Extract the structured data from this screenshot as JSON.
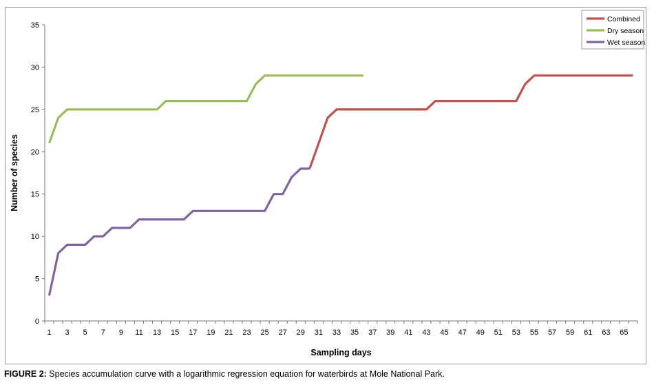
{
  "caption": {
    "label": "FIGURE 2:",
    "text": " Species accumulation curve with a logarithmic regression equation for waterbirds at Mole National Park."
  },
  "chart_data": {
    "type": "line",
    "xlabel": "Sampling days",
    "ylabel": "Number of species",
    "xlim": [
      1,
      66
    ],
    "ylim": [
      0,
      35
    ],
    "yticks": [
      0,
      5,
      10,
      15,
      20,
      25,
      30,
      35
    ],
    "xtick_labels": [
      1,
      3,
      5,
      7,
      9,
      11,
      13,
      15,
      17,
      19,
      21,
      23,
      25,
      27,
      29,
      31,
      33,
      35,
      37,
      39,
      41,
      43,
      45,
      47,
      49,
      51,
      53,
      55,
      57,
      59,
      61,
      63,
      65
    ],
    "grid": false,
    "legend_position": "top-right",
    "series": [
      {
        "name": "Combined",
        "color": "#c0504d",
        "x": [
          30,
          31,
          32,
          33,
          34,
          35,
          36,
          37,
          38,
          39,
          40,
          41,
          42,
          43,
          44,
          45,
          46,
          47,
          48,
          49,
          50,
          51,
          52,
          53,
          54,
          55,
          56,
          57,
          58,
          59,
          60,
          61,
          62,
          63,
          64,
          65,
          66
        ],
        "y": [
          18,
          21,
          24,
          25,
          25,
          25,
          25,
          25,
          25,
          25,
          25,
          25,
          25,
          25,
          26,
          26,
          26,
          26,
          26,
          26,
          26,
          26,
          26,
          26,
          28,
          29,
          29,
          29,
          29,
          29,
          29,
          29,
          29,
          29,
          29,
          29,
          29
        ]
      },
      {
        "name": "Dry season",
        "color": "#9bbb59",
        "x": [
          1,
          2,
          3,
          4,
          5,
          6,
          7,
          8,
          9,
          10,
          11,
          12,
          13,
          14,
          15,
          16,
          17,
          18,
          19,
          20,
          21,
          22,
          23,
          24,
          25,
          26,
          27,
          28,
          29,
          30,
          31,
          32,
          33,
          34,
          35,
          36
        ],
        "y": [
          21,
          24,
          25,
          25,
          25,
          25,
          25,
          25,
          25,
          25,
          25,
          25,
          25,
          26,
          26,
          26,
          26,
          26,
          26,
          26,
          26,
          26,
          26,
          28,
          29,
          29,
          29,
          29,
          29,
          29,
          29,
          29,
          29,
          29,
          29,
          29
        ]
      },
      {
        "name": "Wet season",
        "color": "#8064a2",
        "x": [
          1,
          2,
          3,
          4,
          5,
          6,
          7,
          8,
          9,
          10,
          11,
          12,
          13,
          14,
          15,
          16,
          17,
          18,
          19,
          20,
          21,
          22,
          23,
          24,
          25,
          26,
          27,
          28,
          29,
          30
        ],
        "y": [
          3,
          8,
          9,
          9,
          9,
          10,
          10,
          11,
          11,
          11,
          12,
          12,
          12,
          12,
          12,
          12,
          13,
          13,
          13,
          13,
          13,
          13,
          13,
          13,
          13,
          15,
          15,
          17,
          18,
          18
        ]
      }
    ]
  }
}
